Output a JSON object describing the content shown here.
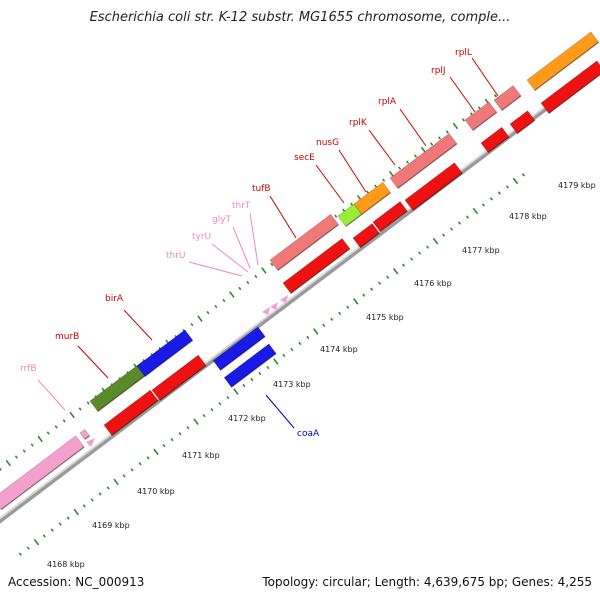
{
  "title": "Escherichia coli str. K-12 substr. MG1655 chromosome, comple...",
  "footer": {
    "accession": "Accession: NC_000913",
    "info": "Topology: circular; Length: 4,639,675 bp; Genes: 4,255"
  },
  "colors": {
    "backbone": "#9a9a9a",
    "tick": "#2e8b2e",
    "forward_pink": "#f4a0cc",
    "cds_red": "#ee1111",
    "cds_lightred": "#f07878",
    "blue": "#1a1ae6",
    "olive": "#5a8a2a",
    "lime": "#99ee33",
    "orange": "#ff9a1a",
    "label_pink": "#ee88bb",
    "label_red": "#cc0000",
    "label_blue": "#0000cc"
  },
  "kbp_labels": [
    "4168 kbp",
    "4169 kbp",
    "4170 kbp",
    "4171 kbp",
    "4172 kbp",
    "4173 kbp",
    "4174 kbp",
    "4175 kbp",
    "4176 kbp",
    "4177 kbp",
    "4178 kbp",
    "4179 kbp"
  ],
  "gene_labels": [
    {
      "text": "rrfB",
      "color": "label_pink"
    },
    {
      "text": "murB",
      "color": "label_red"
    },
    {
      "text": "birA",
      "color": "label_red"
    },
    {
      "text": "thrU",
      "color": "label_pink"
    },
    {
      "text": "tyrU",
      "color": "label_pink"
    },
    {
      "text": "glyT",
      "color": "label_pink"
    },
    {
      "text": "thrT",
      "color": "label_pink"
    },
    {
      "text": "tufB",
      "color": "label_red"
    },
    {
      "text": "secE",
      "color": "label_red"
    },
    {
      "text": "nusG",
      "color": "label_red"
    },
    {
      "text": "rplK",
      "color": "label_red"
    },
    {
      "text": "rplA",
      "color": "label_red"
    },
    {
      "text": "rplJ",
      "color": "label_red"
    },
    {
      "text": "rplL",
      "color": "label_red"
    },
    {
      "text": "coaA",
      "color": "label_blue"
    }
  ]
}
